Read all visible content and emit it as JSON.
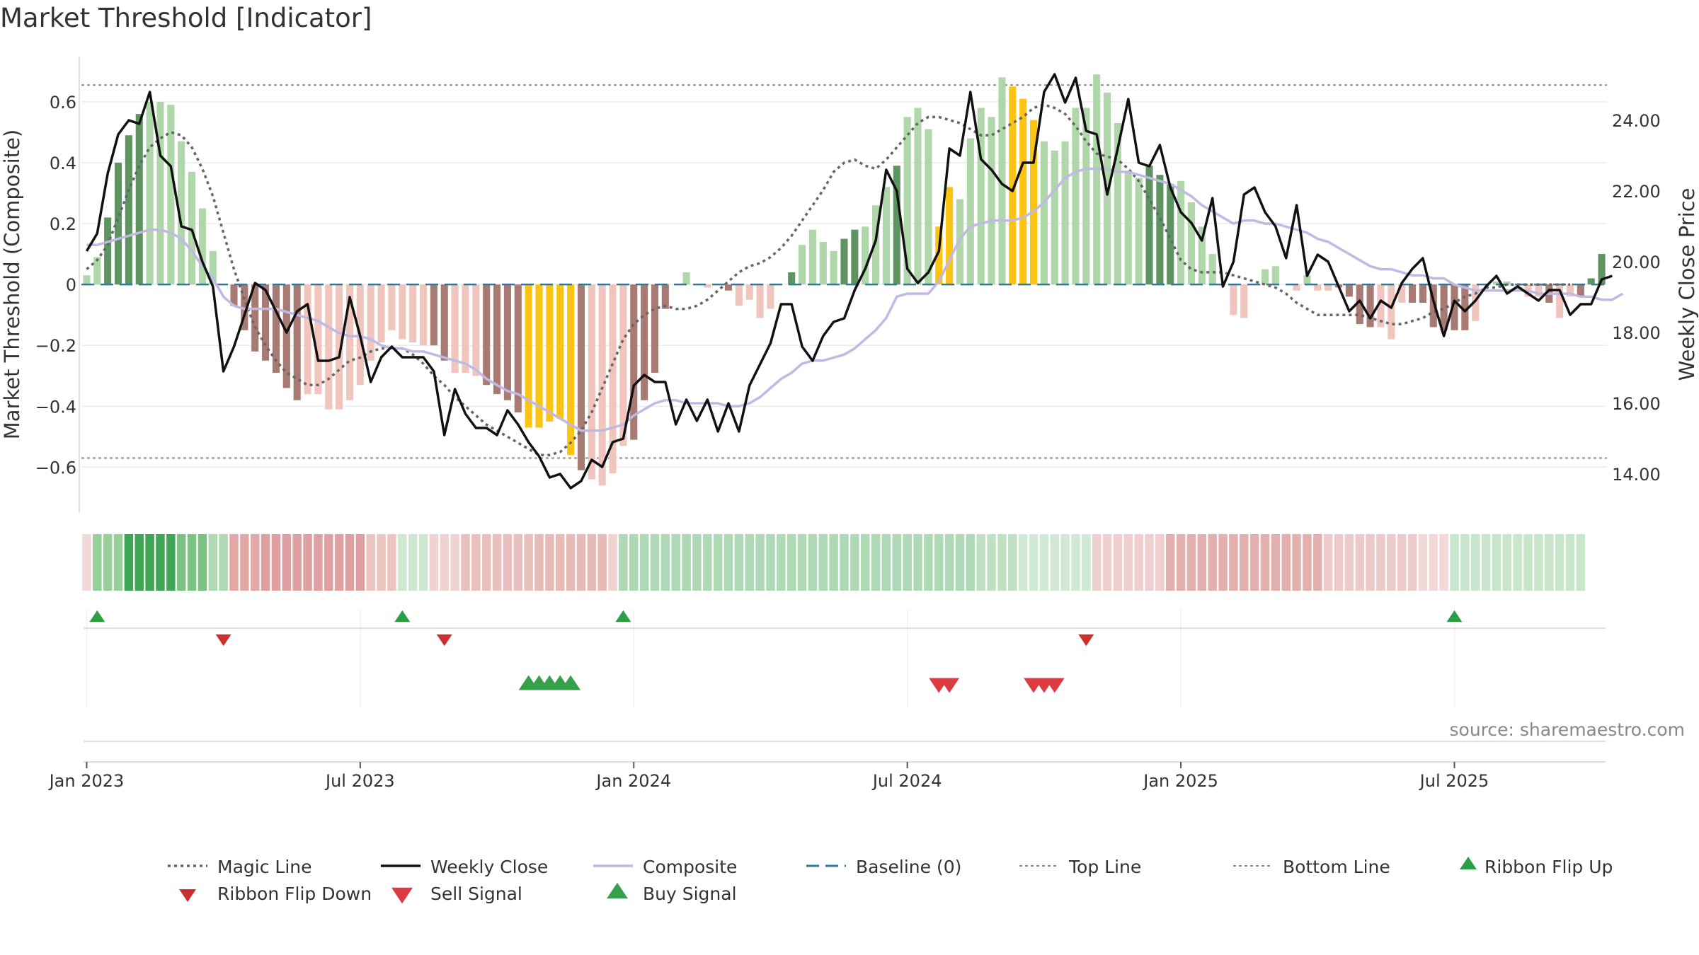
{
  "chart_data": {
    "type": "bar",
    "title": "Market Threshold [Indicator]",
    "ylabel": "Market Threshold (Composite)",
    "y2label": "Weekly Close Price",
    "ylim": [
      -0.75,
      0.76
    ],
    "y2lim": [
      12.9,
      25.9
    ],
    "y_ticks": [
      {
        "v": 0.6,
        "label": "0.6"
      },
      {
        "v": 0.4,
        "label": "0.4"
      },
      {
        "v": 0.2,
        "label": "0.2"
      },
      {
        "v": 0,
        "label": "0"
      },
      {
        "v": -0.2,
        "label": "−0.2"
      },
      {
        "v": -0.4,
        "label": "−0.4"
      },
      {
        "v": -0.6,
        "label": "−0.6"
      }
    ],
    "y2_ticks": [
      {
        "v": 24,
        "label": "24.00"
      },
      {
        "v": 22,
        "label": "22.00"
      },
      {
        "v": 20,
        "label": "20.00"
      },
      {
        "v": 18,
        "label": "18.00"
      },
      {
        "v": 16,
        "label": "16.00"
      },
      {
        "v": 14,
        "label": "14.00"
      }
    ],
    "x_ticks": [
      {
        "week": 1,
        "label": "Jan 2023"
      },
      {
        "week": 27,
        "label": "Jul 2023"
      },
      {
        "week": 53,
        "label": "Jan 2024"
      },
      {
        "week": 79,
        "label": "Jul 2024"
      },
      {
        "week": 105,
        "label": "Jan 2025"
      },
      {
        "week": 131,
        "label": "Jul 2025"
      }
    ],
    "top_line": 0.655,
    "bottom_line": -0.57,
    "baseline": 0,
    "bar_colors": {
      "strong_up": "#5e9462",
      "weak_up": "#afd7a9",
      "strong_down": "#a87a74",
      "weak_down": "#efc5bd",
      "extreme": "#fcc412"
    },
    "line_colors": {
      "weekly_close": "#111111",
      "composite": "#c0b9e4",
      "magic_line": "#666666",
      "baseline": "#2f7a9c",
      "threshold": "#888888"
    },
    "composite_bars": [
      0.03,
      0.09,
      0.22,
      0.4,
      0.49,
      0.56,
      0.6,
      0.6,
      0.59,
      0.47,
      0.37,
      0.25,
      0.11,
      0.0,
      -0.07,
      -0.15,
      -0.22,
      -0.25,
      -0.29,
      -0.34,
      -0.38,
      -0.36,
      -0.36,
      -0.41,
      -0.41,
      -0.38,
      -0.33,
      -0.25,
      -0.19,
      -0.15,
      -0.18,
      -0.19,
      -0.2,
      -0.2,
      -0.25,
      -0.29,
      -0.29,
      -0.3,
      -0.33,
      -0.36,
      -0.38,
      -0.42,
      -0.47,
      -0.47,
      -0.45,
      -0.44,
      -0.56,
      -0.61,
      -0.64,
      -0.66,
      -0.62,
      -0.53,
      -0.51,
      -0.38,
      -0.29,
      -0.08,
      0.0,
      0.04,
      0.0,
      -0.01,
      0.0,
      -0.02,
      -0.07,
      -0.05,
      -0.11,
      -0.08,
      0.0,
      0.04,
      0.13,
      0.18,
      0.14,
      0.11,
      0.15,
      0.18,
      0.19,
      0.26,
      0.32,
      0.39,
      0.55,
      0.58,
      0.51,
      0.19,
      0.32,
      0.28,
      0.48,
      0.58,
      0.55,
      0.68,
      0.65,
      0.61,
      0.54,
      0.47,
      0.44,
      0.47,
      0.58,
      0.58,
      0.69,
      0.63,
      0.53,
      0.37,
      0.35,
      0.39,
      0.36,
      0.33,
      0.34,
      0.27,
      0.19,
      0.1,
      0.0,
      -0.1,
      -0.11,
      0.0,
      0.05,
      0.06,
      0.0,
      -0.02,
      0.03,
      -0.02,
      -0.02,
      -0.01,
      -0.04,
      -0.13,
      -0.14,
      -0.14,
      -0.18,
      -0.06,
      -0.06,
      -0.06,
      -0.14,
      -0.15,
      -0.15,
      -0.15,
      -0.12,
      0.0,
      0.01,
      0.01,
      0.0,
      -0.04,
      -0.04,
      -0.06,
      -0.11,
      -0.04,
      -0.04,
      0.02,
      0.1
    ],
    "extreme_weeks": [
      43,
      44,
      45,
      46,
      47,
      82,
      83,
      89,
      90,
      91
    ],
    "weak_weeks": [
      1,
      2,
      7,
      8,
      9,
      10,
      11,
      12,
      13,
      14,
      22,
      23,
      24,
      25,
      26,
      27,
      28,
      29,
      30,
      31,
      32,
      33,
      36,
      37,
      38,
      49,
      50,
      51,
      52,
      58,
      59,
      60,
      61,
      63,
      64,
      65,
      66,
      69,
      70,
      71,
      72,
      75,
      76,
      77,
      79,
      80,
      81,
      84,
      85,
      86,
      87,
      88,
      92,
      93,
      94,
      95,
      96,
      97,
      98,
      99,
      100,
      101,
      105,
      106,
      107,
      108,
      109,
      110,
      111,
      112,
      113,
      114,
      115,
      116,
      117,
      118,
      119,
      124,
      125,
      126,
      133,
      134,
      135,
      136,
      137,
      138,
      139,
      141,
      142
    ],
    "weekly_close": [
      20.3,
      20.8,
      22.5,
      23.6,
      24.0,
      23.9,
      24.8,
      23.0,
      22.7,
      21.0,
      20.9,
      20.0,
      19.3,
      16.9,
      17.6,
      18.5,
      19.4,
      19.2,
      18.6,
      18.0,
      18.6,
      18.8,
      17.2,
      17.2,
      17.3,
      19.0,
      17.9,
      16.6,
      17.3,
      17.6,
      17.3,
      17.3,
      17.3,
      16.9,
      15.1,
      16.4,
      15.7,
      15.3,
      15.3,
      15.1,
      15.8,
      15.4,
      14.9,
      14.5,
      13.9,
      14.0,
      13.6,
      13.8,
      14.4,
      14.2,
      14.9,
      15.0,
      16.5,
      16.8,
      16.6,
      16.6,
      15.4,
      16.1,
      15.5,
      16.1,
      15.2,
      16.0,
      15.2,
      16.5,
      17.1,
      17.7,
      18.8,
      18.8,
      17.6,
      17.2,
      17.9,
      18.3,
      18.4,
      19.2,
      19.8,
      20.6,
      22.6,
      22.0,
      19.8,
      19.4,
      19.7,
      20.3,
      23.2,
      23.0,
      24.8,
      22.9,
      22.6,
      22.2,
      22.0,
      22.8,
      22.8,
      24.8,
      25.3,
      24.5,
      25.2,
      23.7,
      23.6,
      21.9,
      23.2,
      24.6,
      22.8,
      22.7,
      23.3,
      22.1,
      21.4,
      21.1,
      20.6,
      21.8,
      19.3,
      20.0,
      21.9,
      22.1,
      21.4,
      21.0,
      20.1,
      21.6,
      19.6,
      20.2,
      20.0,
      19.3,
      18.6,
      18.9,
      18.4,
      18.9,
      18.7,
      19.4,
      19.8,
      20.1,
      18.9,
      17.9,
      18.9,
      18.6,
      18.9,
      19.3,
      19.6,
      19.1,
      19.3,
      19.1,
      18.9,
      19.2,
      19.2,
      18.5,
      18.8,
      18.8,
      19.5,
      19.6
    ],
    "composite_line": [
      0.13,
      0.13,
      0.14,
      0.15,
      0.16,
      0.17,
      0.18,
      0.18,
      0.17,
      0.15,
      0.11,
      0.06,
      0.02,
      -0.04,
      -0.07,
      -0.08,
      -0.08,
      -0.08,
      -0.08,
      -0.09,
      -0.1,
      -0.11,
      -0.12,
      -0.14,
      -0.16,
      -0.17,
      -0.17,
      -0.18,
      -0.2,
      -0.21,
      -0.21,
      -0.22,
      -0.22,
      -0.23,
      -0.24,
      -0.25,
      -0.26,
      -0.28,
      -0.31,
      -0.33,
      -0.35,
      -0.36,
      -0.38,
      -0.4,
      -0.42,
      -0.44,
      -0.46,
      -0.48,
      -0.48,
      -0.48,
      -0.47,
      -0.46,
      -0.43,
      -0.41,
      -0.39,
      -0.38,
      -0.38,
      -0.39,
      -0.39,
      -0.39,
      -0.39,
      -0.4,
      -0.4,
      -0.39,
      -0.37,
      -0.34,
      -0.31,
      -0.29,
      -0.26,
      -0.25,
      -0.25,
      -0.24,
      -0.23,
      -0.21,
      -0.18,
      -0.15,
      -0.11,
      -0.04,
      -0.03,
      -0.03,
      -0.03,
      0.01,
      0.08,
      0.15,
      0.19,
      0.2,
      0.21,
      0.21,
      0.21,
      0.22,
      0.24,
      0.27,
      0.31,
      0.35,
      0.37,
      0.38,
      0.38,
      0.38,
      0.37,
      0.37,
      0.36,
      0.35,
      0.34,
      0.33,
      0.31,
      0.29,
      0.26,
      0.24,
      0.22,
      0.2,
      0.21,
      0.21,
      0.2,
      0.2,
      0.19,
      0.18,
      0.17,
      0.15,
      0.14,
      0.12,
      0.1,
      0.08,
      0.06,
      0.05,
      0.05,
      0.04,
      0.03,
      0.03,
      0.02,
      0.02,
      0.0,
      -0.01,
      -0.02,
      -0.02,
      -0.02,
      -0.02,
      -0.02,
      -0.02,
      -0.03,
      -0.03,
      -0.03,
      -0.03,
      -0.04,
      -0.04,
      -0.05,
      -0.05,
      -0.03
    ],
    "magic_line": [
      0.05,
      0.08,
      0.13,
      0.22,
      0.31,
      0.39,
      0.45,
      0.48,
      0.5,
      0.49,
      0.45,
      0.38,
      0.29,
      0.17,
      0.05,
      -0.05,
      -0.14,
      -0.2,
      -0.25,
      -0.29,
      -0.31,
      -0.33,
      -0.33,
      -0.31,
      -0.28,
      -0.25,
      -0.24,
      -0.22,
      -0.21,
      -0.21,
      -0.21,
      -0.23,
      -0.26,
      -0.3,
      -0.33,
      -0.37,
      -0.4,
      -0.43,
      -0.46,
      -0.48,
      -0.5,
      -0.52,
      -0.54,
      -0.56,
      -0.56,
      -0.55,
      -0.52,
      -0.48,
      -0.42,
      -0.34,
      -0.26,
      -0.18,
      -0.13,
      -0.1,
      -0.08,
      -0.07,
      -0.08,
      -0.08,
      -0.07,
      -0.05,
      -0.02,
      0.01,
      0.04,
      0.06,
      0.07,
      0.09,
      0.12,
      0.16,
      0.21,
      0.26,
      0.31,
      0.37,
      0.4,
      0.41,
      0.39,
      0.38,
      0.41,
      0.45,
      0.49,
      0.53,
      0.55,
      0.55,
      0.54,
      0.53,
      0.51,
      0.49,
      0.49,
      0.51,
      0.53,
      0.55,
      0.58,
      0.59,
      0.58,
      0.56,
      0.52,
      0.47,
      0.43,
      0.42,
      0.41,
      0.38,
      0.34,
      0.28,
      0.22,
      0.15,
      0.08,
      0.05,
      0.04,
      0.04,
      0.04,
      0.03,
      0.02,
      0.01,
      0.0,
      -0.01,
      -0.03,
      -0.06,
      -0.08,
      -0.1,
      -0.1,
      -0.1,
      -0.1,
      -0.1,
      -0.11,
      -0.12,
      -0.13,
      -0.13,
      -0.12,
      -0.11,
      -0.09,
      -0.08,
      -0.06,
      -0.04,
      -0.03,
      -0.01,
      -0.01,
      0.0,
      0.0,
      0.0,
      0.0,
      0.0,
      0.0,
      0.0
    ],
    "ribbon": [
      {
        "from": 1,
        "to": 1,
        "color": "#f2d8d6"
      },
      {
        "from": 2,
        "to": 4,
        "color": "#97cf9b"
      },
      {
        "from": 5,
        "to": 9,
        "color": "#3fa653"
      },
      {
        "from": 10,
        "to": 12,
        "color": "#7cc283"
      },
      {
        "from": 13,
        "to": 14,
        "color": "#aed9b2"
      },
      {
        "from": 15,
        "to": 17,
        "color": "#e3a9a6"
      },
      {
        "from": 18,
        "to": 27,
        "color": "#dea0a0"
      },
      {
        "from": 28,
        "to": 30,
        "color": "#ecc4c2"
      },
      {
        "from": 31,
        "to": 33,
        "color": "#cde7d1"
      },
      {
        "from": 34,
        "to": 36,
        "color": "#f0d3d1"
      },
      {
        "from": 37,
        "to": 43,
        "color": "#eac0be"
      },
      {
        "from": 44,
        "to": 50,
        "color": "#e8bab7"
      },
      {
        "from": 51,
        "to": 51,
        "color": "#f0d3d1"
      },
      {
        "from": 52,
        "to": 85,
        "color": "#afd9b4"
      },
      {
        "from": 86,
        "to": 89,
        "color": "#bfe0c3"
      },
      {
        "from": 90,
        "to": 96,
        "color": "#d0e9d4"
      },
      {
        "from": 97,
        "to": 103,
        "color": "#efcfcd"
      },
      {
        "from": 104,
        "to": 118,
        "color": "#e3b0ae"
      },
      {
        "from": 119,
        "to": 127,
        "color": "#eccac8"
      },
      {
        "from": 128,
        "to": 130,
        "color": "#f2d8d6"
      },
      {
        "from": 131,
        "to": 143,
        "color": "#c8e6cc"
      }
    ],
    "ribbon_flip_up": [
      2,
      31,
      52,
      131
    ],
    "ribbon_flip_down": [
      14,
      35,
      96
    ],
    "buy_signal": [
      43,
      44,
      45,
      46,
      47
    ],
    "sell_signal": [
      82,
      83,
      91,
      92,
      93
    ],
    "signal_colors": {
      "ribbon_flip_up": "#2b9e46",
      "ribbon_flip_down": "#cc2f2f",
      "buy": "#35a149",
      "sell": "#dd3b42"
    },
    "source": "source: sharemaestro.com",
    "legend": [
      {
        "label": "Magic Line",
        "kind": "dotted",
        "color": "#666666"
      },
      {
        "label": "Weekly Close",
        "kind": "solid",
        "color": "#111111"
      },
      {
        "label": "Composite",
        "kind": "solid",
        "color": "#c0b9e4"
      },
      {
        "label": "Baseline (0)",
        "kind": "dashed",
        "color": "#2f7a9c"
      },
      {
        "label": "Top Line",
        "kind": "dotted-light",
        "color": "#888888"
      },
      {
        "label": "Bottom Line",
        "kind": "dotted-light",
        "color": "#888888"
      },
      {
        "label": "Ribbon Flip Up",
        "kind": "tri-up-small",
        "color": "#2b9e46"
      },
      {
        "label": "Ribbon Flip Down",
        "kind": "tri-down-small",
        "color": "#cc2f2f"
      },
      {
        "label": "Sell Signal",
        "kind": "tri-down",
        "color": "#dd3b42"
      },
      {
        "label": "Buy Signal",
        "kind": "tri-up",
        "color": "#35a149"
      }
    ]
  }
}
